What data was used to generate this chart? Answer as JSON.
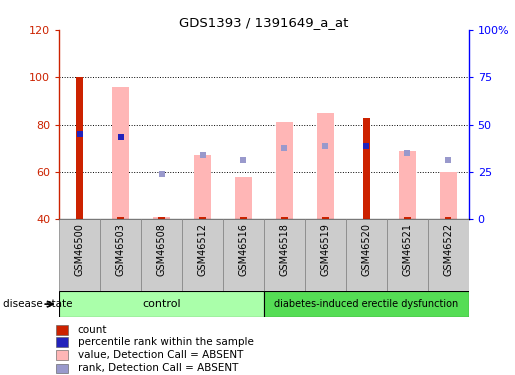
{
  "title": "GDS1393 / 1391649_a_at",
  "samples": [
    "GSM46500",
    "GSM46503",
    "GSM46508",
    "GSM46512",
    "GSM46516",
    "GSM46518",
    "GSM46519",
    "GSM46520",
    "GSM46521",
    "GSM46522"
  ],
  "ylim_left": [
    40,
    120
  ],
  "yticks_left": [
    40,
    60,
    80,
    100,
    120
  ],
  "yticks_right": [
    0,
    25,
    50,
    75,
    100
  ],
  "ytick_right_labels": [
    "0",
    "25",
    "50",
    "75",
    "100%"
  ],
  "red_bar_tops": [
    100,
    40.8,
    41.0,
    40.8,
    40.8,
    40.8,
    40.8,
    83.0,
    40.8,
    40.8
  ],
  "pink_bar_tops": [
    40.0,
    96.0,
    41.2,
    67.0,
    58.0,
    81.0,
    85.0,
    40.0,
    69.0,
    60.0
  ],
  "blue_sq_y": [
    76.0,
    75.0,
    59.0,
    67.0,
    65.0,
    70.0,
    71.0,
    71.0,
    68.0,
    65.0
  ],
  "blue_sq_dark": [
    true,
    true,
    false,
    false,
    false,
    false,
    false,
    true,
    false,
    false
  ],
  "n_control": 5,
  "n_disease": 5,
  "control_label": "control",
  "disease_label": "diabetes-induced erectile dysfunction",
  "disease_state_label": "disease state",
  "col_red": "#CC2200",
  "col_pink": "#FFB6B6",
  "col_blue_dark": "#2222BB",
  "col_blue_light": "#9999CC",
  "col_group_light": "#AAFFAA",
  "col_group_dark": "#55DD55",
  "col_tickbox": "#CCCCCC",
  "legend_labels": [
    "count",
    "percentile rank within the sample",
    "value, Detection Call = ABSENT",
    "rank, Detection Call = ABSENT"
  ],
  "legend_colors": [
    "#CC2200",
    "#2222BB",
    "#FFB6B6",
    "#9999CC"
  ]
}
